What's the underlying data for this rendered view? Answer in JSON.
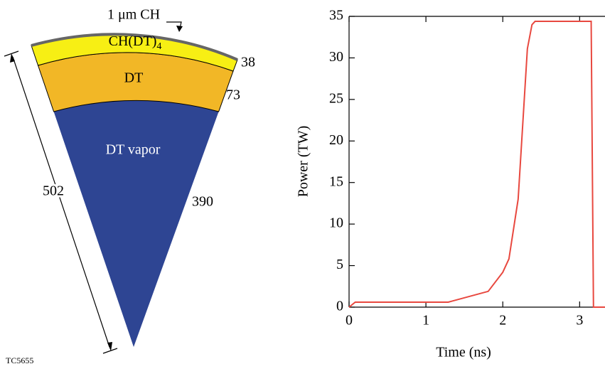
{
  "diagram": {
    "outer_layer": "1 μm CH",
    "layer1": {
      "text": "CH(DT)",
      "subscript": "4"
    },
    "layer2": "DT",
    "core": "DT vapor",
    "radius_outer": "38",
    "radius_layer2": "73",
    "radius_core": "390",
    "total_radius": "502",
    "figure_id": "TC5655"
  },
  "chart_data": {
    "type": "line",
    "x_label": "Time (ns)",
    "y_label": "Power (TW)",
    "x": [
      0,
      0.08,
      1.29,
      1.81,
      2.0,
      2.08,
      2.2,
      2.32,
      2.38,
      2.42,
      3.15,
      3.18,
      3.33
    ],
    "series": [
      {
        "color": "#e8483f",
        "values": [
          0,
          0.6,
          0.6,
          1.9,
          4.2,
          5.8,
          13,
          31.1,
          34,
          34.4,
          34.4,
          0,
          0
        ]
      }
    ],
    "xlim": [
      0,
      3.33
    ],
    "ylim": [
      0,
      35
    ],
    "xticks": [
      0,
      1,
      2,
      3
    ],
    "yticks": [
      0,
      5,
      10,
      15,
      20,
      25,
      30,
      35
    ]
  }
}
